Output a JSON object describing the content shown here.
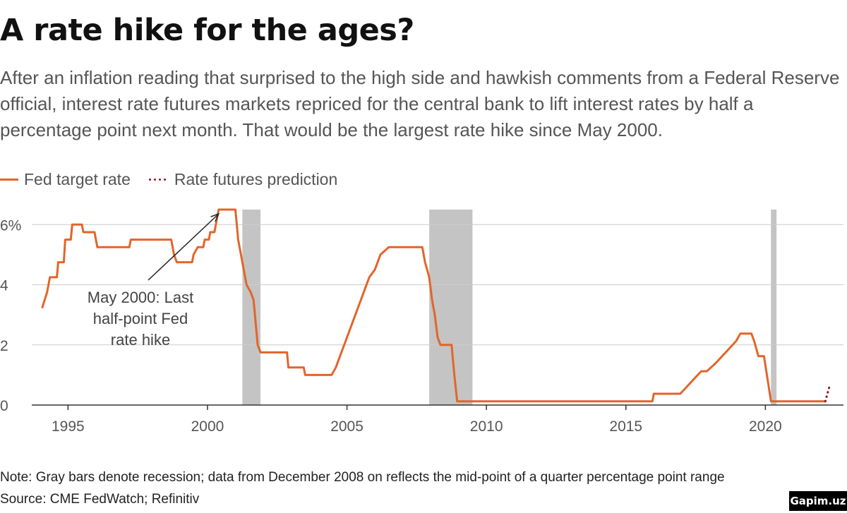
{
  "header": {
    "title": "A rate hike for the ages?",
    "subtitle": "After an inflation reading that surprised to the high side and hawkish comments from a Federal Reserve official, interest rate futures markets repriced for the central bank to lift interest rates by half a percentage point next month. That would be the largest rate hike since May 2000."
  },
  "legend": {
    "series1": "Fed target rate",
    "series2": "Rate futures prediction"
  },
  "footer": {
    "note": "Note: Gray bars denote recession; data from December 2008 on reflects the mid-point of a quarter percentage point range",
    "source": "Source: CME FedWatch; Refinitiv",
    "badge": "Gapim.uz"
  },
  "colors": {
    "fed_line": "#e2652a",
    "prediction": "#8b1a1a",
    "recession": "#c4c4c4",
    "grid": "#cccccc",
    "axis": "#333333"
  },
  "chart_data": {
    "type": "line",
    "xlim": [
      1993.7,
      2022.8
    ],
    "ylim": [
      0,
      6.5
    ],
    "x_ticks": [
      1995,
      2000,
      2005,
      2010,
      2015,
      2020
    ],
    "x_tick_labels": [
      "1995",
      "2000",
      "2005",
      "2010",
      "2015",
      "2020"
    ],
    "y_ticks": [
      0,
      2,
      4,
      6
    ],
    "y_tick_labels": [
      "0",
      "2",
      "4",
      "6%"
    ],
    "grid": "horizontal",
    "legend_position": "top-left",
    "recessions": [
      [
        2001.25,
        2001.9
      ],
      [
        2007.95,
        2009.5
      ],
      [
        2020.2,
        2020.4
      ]
    ],
    "annotation": {
      "lines": [
        "May 2000: Last",
        "half-point Fed",
        "rate hike"
      ],
      "x": 2000.4,
      "y": 6.5
    },
    "series": [
      {
        "name": "Fed target rate",
        "style": "solid",
        "points": [
          [
            1994.08,
            3.25
          ],
          [
            1994.25,
            3.75
          ],
          [
            1994.35,
            4.25
          ],
          [
            1994.6,
            4.25
          ],
          [
            1994.65,
            4.75
          ],
          [
            1994.85,
            4.75
          ],
          [
            1994.9,
            5.5
          ],
          [
            1995.1,
            5.5
          ],
          [
            1995.15,
            6.0
          ],
          [
            1995.5,
            6.0
          ],
          [
            1995.55,
            5.75
          ],
          [
            1995.95,
            5.75
          ],
          [
            1996.05,
            5.25
          ],
          [
            1997.2,
            5.25
          ],
          [
            1997.25,
            5.5
          ],
          [
            1998.7,
            5.5
          ],
          [
            1998.75,
            5.25
          ],
          [
            1998.8,
            5.0
          ],
          [
            1998.9,
            4.75
          ],
          [
            1999.45,
            4.75
          ],
          [
            1999.5,
            5.0
          ],
          [
            1999.65,
            5.25
          ],
          [
            1999.85,
            5.25
          ],
          [
            1999.9,
            5.5
          ],
          [
            2000.05,
            5.5
          ],
          [
            2000.1,
            5.75
          ],
          [
            2000.25,
            5.75
          ],
          [
            2000.4,
            6.5
          ],
          [
            2001.0,
            6.5
          ],
          [
            2001.05,
            6.0
          ],
          [
            2001.1,
            5.5
          ],
          [
            2001.2,
            5.0
          ],
          [
            2001.3,
            4.5
          ],
          [
            2001.4,
            4.0
          ],
          [
            2001.55,
            3.75
          ],
          [
            2001.65,
            3.5
          ],
          [
            2001.7,
            3.0
          ],
          [
            2001.75,
            2.5
          ],
          [
            2001.8,
            2.0
          ],
          [
            2001.9,
            1.75
          ],
          [
            2002.85,
            1.75
          ],
          [
            2002.9,
            1.25
          ],
          [
            2003.45,
            1.25
          ],
          [
            2003.5,
            1.0
          ],
          [
            2004.45,
            1.0
          ],
          [
            2004.6,
            1.25
          ],
          [
            2004.7,
            1.5
          ],
          [
            2004.8,
            1.75
          ],
          [
            2005.0,
            2.25
          ],
          [
            2005.2,
            2.75
          ],
          [
            2005.4,
            3.25
          ],
          [
            2005.6,
            3.75
          ],
          [
            2005.8,
            4.25
          ],
          [
            2006.0,
            4.5
          ],
          [
            2006.2,
            5.0
          ],
          [
            2006.5,
            5.25
          ],
          [
            2007.7,
            5.25
          ],
          [
            2007.8,
            4.75
          ],
          [
            2007.95,
            4.25
          ],
          [
            2008.05,
            3.5
          ],
          [
            2008.15,
            3.0
          ],
          [
            2008.25,
            2.25
          ],
          [
            2008.35,
            2.0
          ],
          [
            2008.75,
            2.0
          ],
          [
            2008.8,
            1.5
          ],
          [
            2008.85,
            1.0
          ],
          [
            2008.95,
            0.125
          ],
          [
            2015.95,
            0.125
          ],
          [
            2016.0,
            0.375
          ],
          [
            2016.95,
            0.375
          ],
          [
            2017.2,
            0.625
          ],
          [
            2017.45,
            0.875
          ],
          [
            2017.7,
            1.125
          ],
          [
            2017.9,
            1.125
          ],
          [
            2018.2,
            1.375
          ],
          [
            2018.45,
            1.625
          ],
          [
            2018.7,
            1.875
          ],
          [
            2018.95,
            2.125
          ],
          [
            2019.1,
            2.375
          ],
          [
            2019.5,
            2.375
          ],
          [
            2019.6,
            2.125
          ],
          [
            2019.75,
            1.625
          ],
          [
            2019.95,
            1.625
          ],
          [
            2020.2,
            0.125
          ],
          [
            2022.15,
            0.125
          ]
        ]
      },
      {
        "name": "Rate futures prediction",
        "style": "dotted",
        "points": [
          [
            2022.15,
            0.125
          ],
          [
            2022.3,
            0.625
          ]
        ]
      }
    ]
  }
}
